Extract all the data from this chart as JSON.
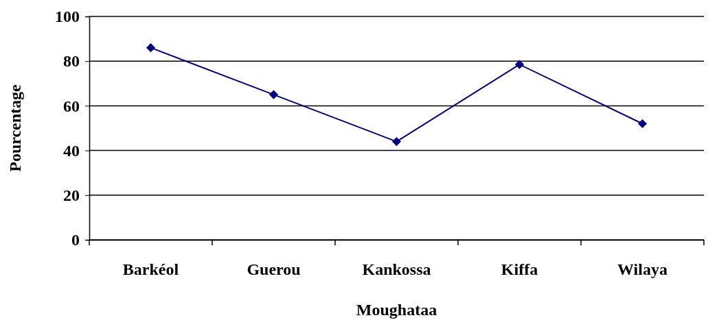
{
  "chart_data": {
    "type": "line",
    "xlabel": "Moughataa",
    "ylabel": "Pourcentage",
    "categories": [
      "Barkéol",
      "Guerou",
      "Kankossa",
      "Kiffa",
      "Wilaya"
    ],
    "series": [
      {
        "color": "#000080",
        "values": [
          86,
          65,
          44,
          78.5,
          52
        ]
      }
    ],
    "ylim": [
      0,
      100
    ],
    "yticks": [
      0,
      20,
      40,
      60,
      80,
      100
    ],
    "grid": "y",
    "marker": "diamond",
    "line_style": "solid"
  }
}
